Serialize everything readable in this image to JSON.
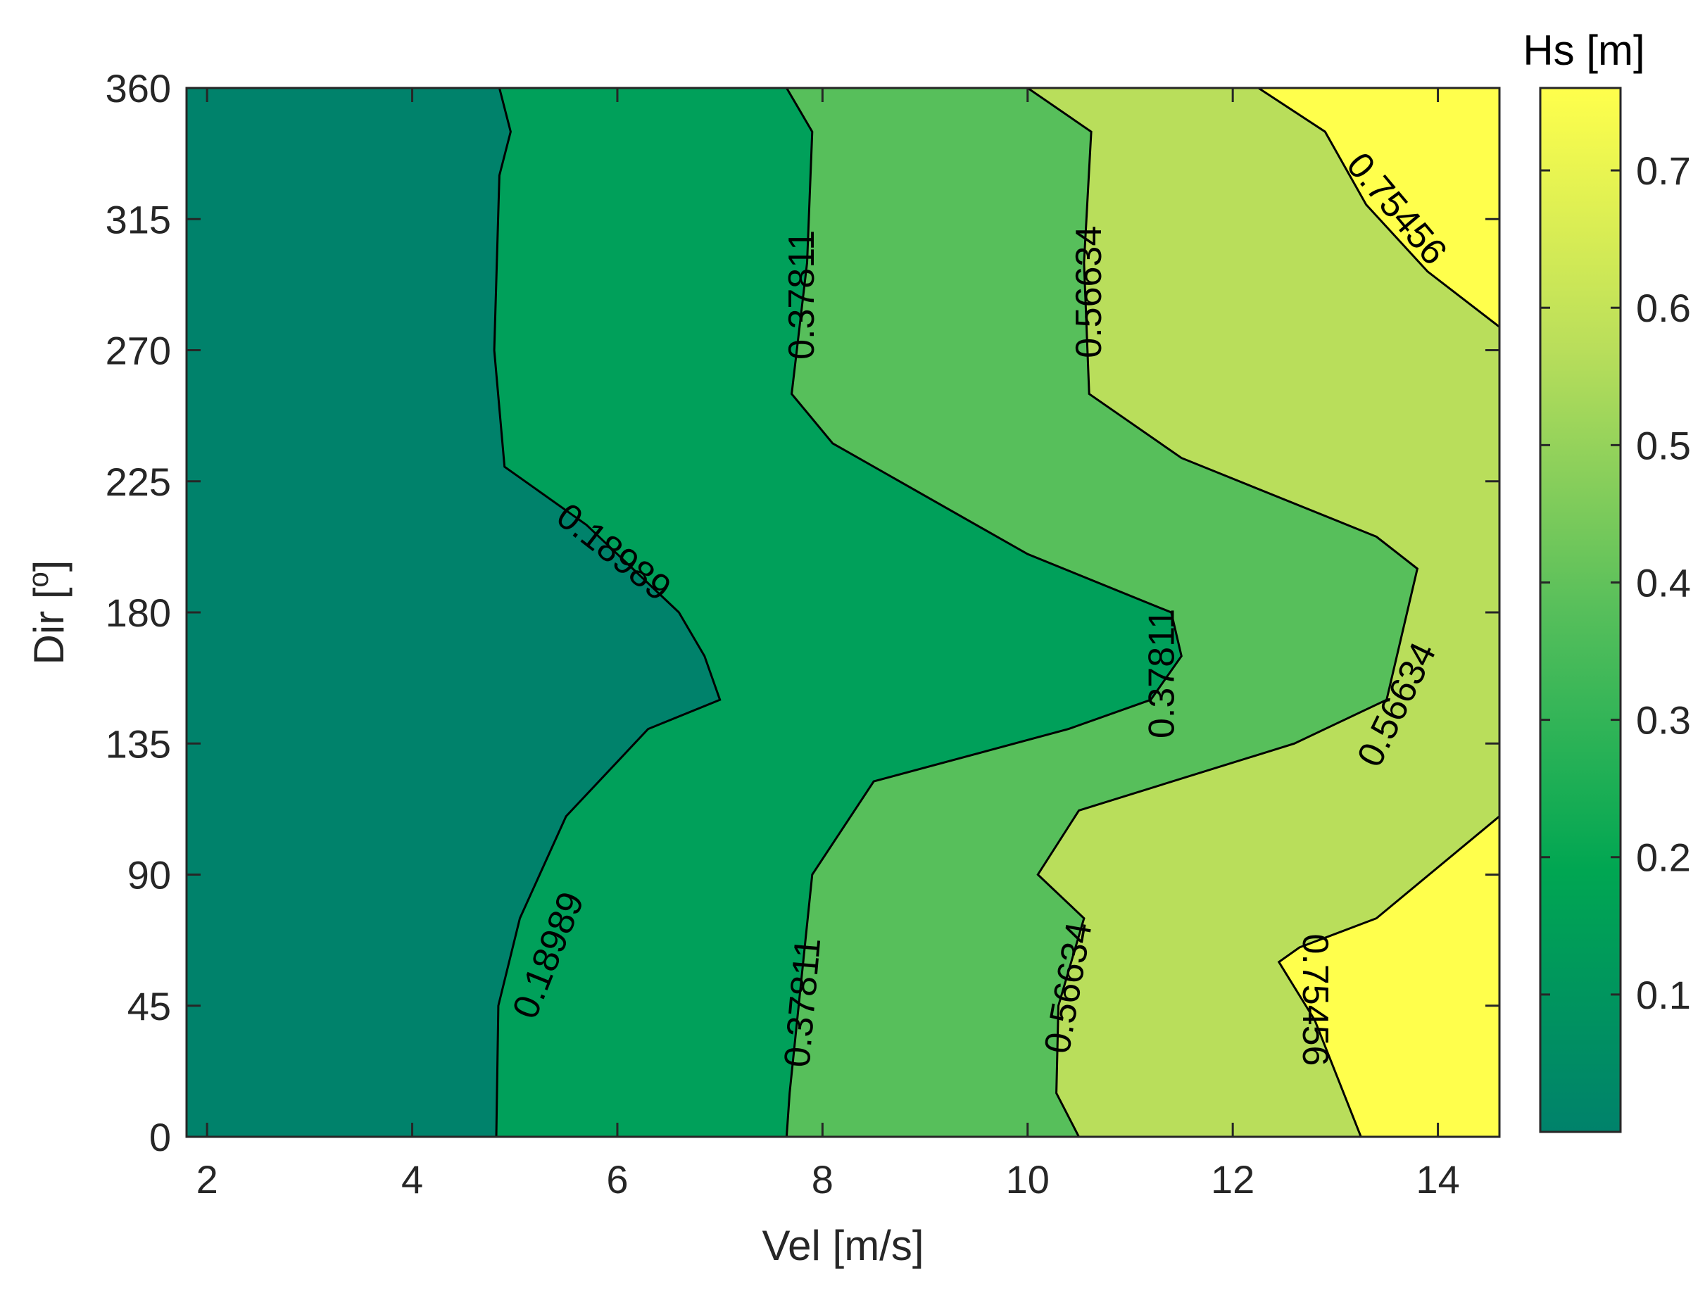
{
  "chart_data": {
    "type": "contour",
    "title": "",
    "xlabel": "Vel [m/s]",
    "ylabel": "Dir [º]",
    "ylabel_main": "Dir [",
    "ylabel_sup": "o",
    "ylabel_tail": "]",
    "xlim": [
      1.8,
      14.6
    ],
    "ylim": [
      0,
      360
    ],
    "x_ticks": [
      2,
      4,
      6,
      8,
      10,
      12,
      14
    ],
    "y_ticks": [
      0,
      45,
      90,
      135,
      180,
      225,
      270,
      315,
      360
    ],
    "colorbar": {
      "title": "Hs [m]",
      "range": [
        0.0,
        0.76
      ],
      "ticks": [
        0.1,
        0.2,
        0.3,
        0.4,
        0.5,
        0.6,
        0.7
      ],
      "colormap": [
        "#00826b",
        "#00a652",
        "#57bf5b",
        "#b9de5b",
        "#ffff4c"
      ]
    },
    "levels": [
      0.18989,
      0.37811,
      0.56634,
      0.75456
    ],
    "level_colors": [
      "#00826b",
      "#00a05a",
      "#57bf5b",
      "#b9de5b",
      "#ffff4c"
    ],
    "contours": [
      {
        "level": 0.18989,
        "points": [
          [
            4.82,
            0
          ],
          [
            4.84,
            45
          ],
          [
            5.05,
            75
          ],
          [
            5.5,
            110
          ],
          [
            6.3,
            140
          ],
          [
            7.0,
            150
          ],
          [
            6.85,
            165
          ],
          [
            6.6,
            180
          ],
          [
            5.7,
            210
          ],
          [
            4.9,
            230
          ],
          [
            4.8,
            270
          ],
          [
            4.85,
            330
          ],
          [
            4.96,
            345
          ],
          [
            4.85,
            360
          ]
        ]
      },
      {
        "level": 0.37811,
        "points": [
          [
            7.65,
            0
          ],
          [
            7.68,
            15
          ],
          [
            7.9,
            90
          ],
          [
            8.5,
            122
          ],
          [
            10.4,
            140
          ],
          [
            11.2,
            150
          ],
          [
            11.5,
            165
          ],
          [
            11.4,
            180
          ],
          [
            10.0,
            200
          ],
          [
            8.1,
            238
          ],
          [
            7.7,
            255
          ],
          [
            7.85,
            300
          ],
          [
            7.9,
            345
          ],
          [
            7.65,
            360
          ]
        ]
      },
      {
        "level": 0.56634,
        "points": [
          [
            10.5,
            0
          ],
          [
            10.28,
            15
          ],
          [
            10.3,
            45
          ],
          [
            10.55,
            75
          ],
          [
            10.1,
            90
          ],
          [
            10.5,
            112
          ],
          [
            12.6,
            135
          ],
          [
            13.5,
            150
          ],
          [
            13.8,
            195
          ],
          [
            13.4,
            206
          ],
          [
            11.5,
            233
          ],
          [
            10.6,
            255
          ],
          [
            10.55,
            300
          ],
          [
            10.62,
            345
          ],
          [
            10.0,
            360
          ]
        ]
      },
      {
        "level": 0.75456,
        "points": [
          [
            13.25,
            0
          ],
          [
            12.8,
            40
          ],
          [
            12.45,
            60
          ],
          [
            12.65,
            65
          ],
          [
            13.4,
            75
          ],
          [
            14.6,
            110
          ]
        ]
      },
      {
        "level": 0.75456,
        "points": [
          [
            12.25,
            360
          ],
          [
            12.9,
            345
          ],
          [
            13.3,
            320
          ],
          [
            13.9,
            297
          ],
          [
            14.6,
            278
          ]
        ]
      }
    ],
    "contour_labels": [
      {
        "text": "0.18989",
        "x": 5.95,
        "y": 200,
        "angle": 38
      },
      {
        "text": "0.18989",
        "x": 5.35,
        "y": 62,
        "angle": -68
      },
      {
        "text": "0.37811",
        "x": 7.82,
        "y": 289,
        "angle": -90
      },
      {
        "text": "0.37811",
        "x": 7.83,
        "y": 46,
        "angle": -85
      },
      {
        "text": "0.37811",
        "x": 11.33,
        "y": 159,
        "angle": -90
      },
      {
        "text": "0.56634",
        "x": 10.62,
        "y": 290,
        "angle": -90
      },
      {
        "text": "0.56634",
        "x": 10.42,
        "y": 51,
        "angle": -80
      },
      {
        "text": "0.56634",
        "x": 13.62,
        "y": 148,
        "angle": -64
      },
      {
        "text": "0.75456",
        "x": 13.58,
        "y": 318,
        "angle": 50
      },
      {
        "text": "0.75456",
        "x": 12.78,
        "y": 47,
        "angle": 90
      }
    ]
  }
}
